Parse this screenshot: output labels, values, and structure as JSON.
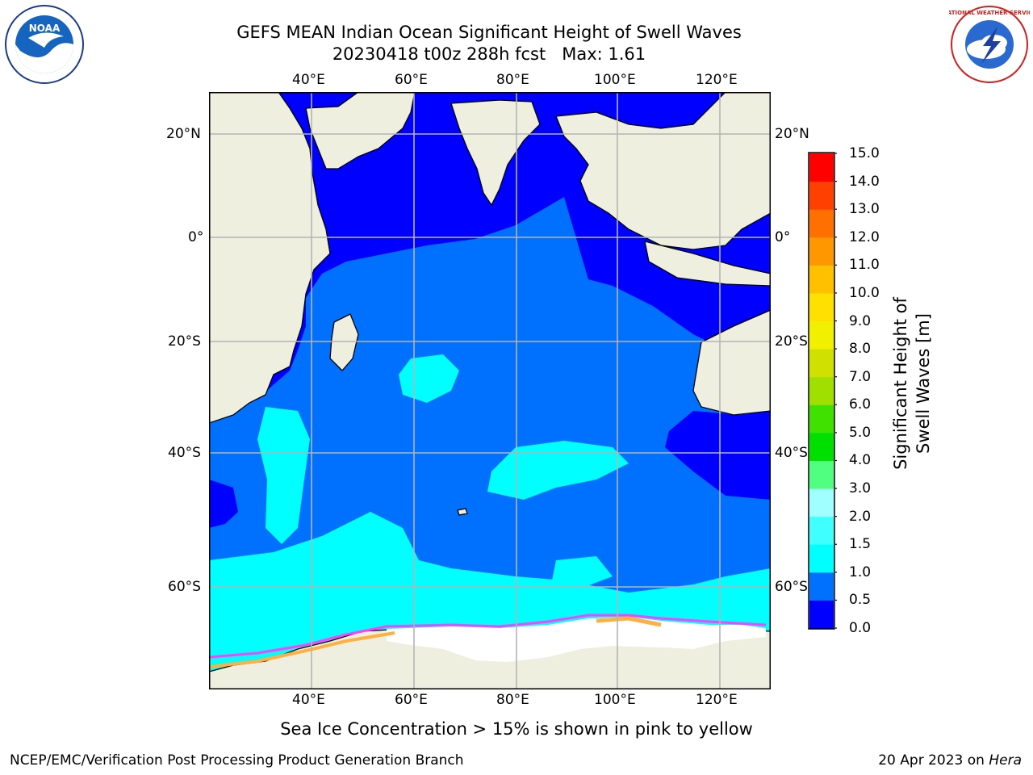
{
  "title": {
    "line1": "GEFS MEAN Indian Ocean Significant Height of Swell Waves",
    "line2": "20230418 t00z 288h fcst   Max: 1.61"
  },
  "map": {
    "top_lon_labels": [
      "40°E",
      "60°E",
      "80°E",
      "100°E",
      "120°E"
    ],
    "bottom_lon_labels": [
      "40°E",
      "60°E",
      "80°E",
      "100°E",
      "120°E"
    ],
    "left_lat_labels": [
      "20°N",
      "0°",
      "20°S",
      "40°S",
      "60°S"
    ],
    "right_lat_labels": [
      "20°N",
      "0°",
      "20°S",
      "40°S",
      "60°S"
    ]
  },
  "colorbar": {
    "label": "Significant Height of Swell Waves [m]",
    "tick_labels": [
      "0.0",
      "0.5",
      "1.0",
      "1.5",
      "2.0",
      "3.0",
      "4.0",
      "5.0",
      "6.0",
      "7.0",
      "8.0",
      "9.0",
      "10.0",
      "11.0",
      "12.0",
      "13.0",
      "14.0",
      "15.0"
    ],
    "colors": [
      "#0000ff",
      "#0070ff",
      "#00ffff",
      "#40ffff",
      "#a0ffff",
      "#50ff80",
      "#00e000",
      "#40e000",
      "#a0e000",
      "#d0e000",
      "#f0f000",
      "#ffe000",
      "#ffc000",
      "#ff9800",
      "#ff7000",
      "#ff4000",
      "#ff0000"
    ]
  },
  "colors": {
    "land": "#efefdf",
    "ice": "#ffffff",
    "ice_edge": "#ff40ff",
    "ice_thick": "#ffb040",
    "grid": "#b4b4b4"
  },
  "caption": "Sea Ice Concentration > 15% is shown in pink to yellow",
  "footer": {
    "left": "NCEP/EMC/Verification Post Processing Product Generation Branch",
    "right_date": "20 Apr 2023 on ",
    "right_machine": "Hera"
  },
  "logos": {
    "left": "NOAA",
    "right": "NATIONAL WEATHER SERVICE"
  }
}
